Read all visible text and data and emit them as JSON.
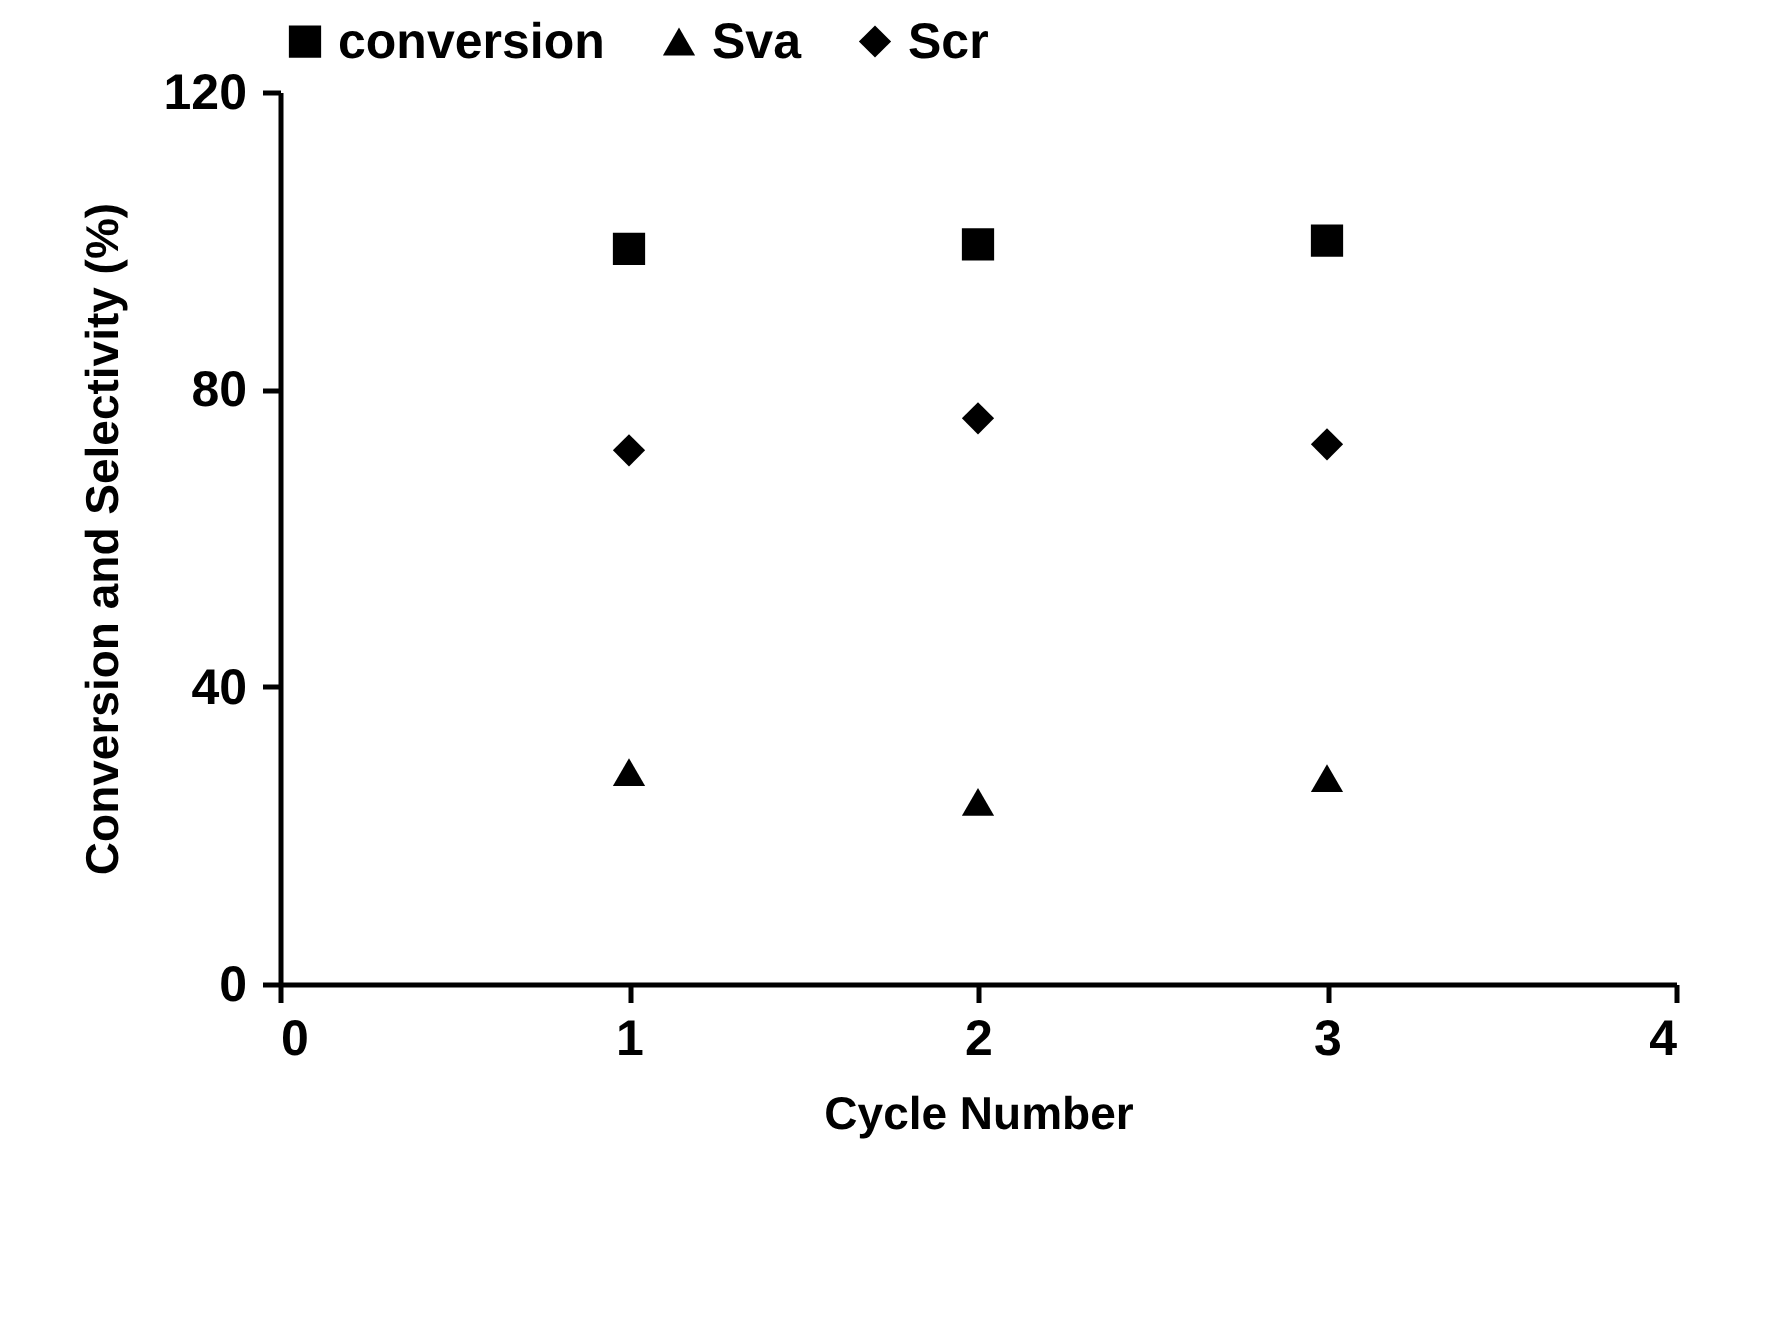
{
  "chart_data": {
    "type": "scatter",
    "xlabel": "Cycle Number",
    "ylabel": "Conversion and  Selectivity (%)",
    "x": [
      1,
      2,
      3
    ],
    "xlim": [
      0,
      4
    ],
    "xticks": [
      0,
      1,
      2,
      3,
      4
    ],
    "ylim": [
      0,
      120
    ],
    "yticks": [
      0,
      40,
      80,
      120
    ],
    "grid": false,
    "legend": "top",
    "series": [
      {
        "name": "conversion",
        "color": "#000000",
        "marker": "square",
        "values": [
          98.9,
          99.5,
          100
        ]
      },
      {
        "name": "Sva",
        "color": "#000000",
        "marker": "triangle",
        "values": [
          28.5,
          24.5,
          27.7
        ]
      },
      {
        "name": "Scr",
        "color": "#000000",
        "marker": "diamond",
        "values": [
          71.8,
          76.1,
          72.6
        ]
      }
    ]
  }
}
